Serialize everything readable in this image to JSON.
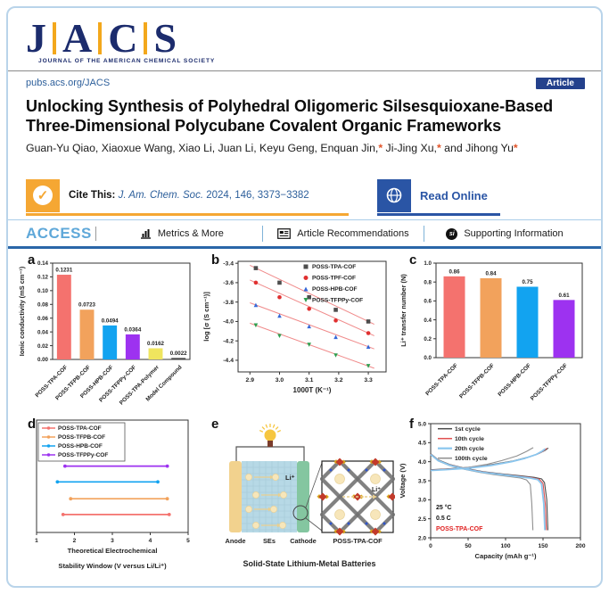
{
  "header": {
    "logo_letters": [
      "J",
      "A",
      "C",
      "S"
    ],
    "logo_subtitle": "JOURNAL OF THE AMERICAN CHEMICAL SOCIETY",
    "site_url": "pubs.acs.org/JACS",
    "article_badge": "Article",
    "title_line1": "Unlocking Synthesis of Polyhedral Oligomeric Silsesquioxane-Based",
    "title_line2": "Three-Dimensional Polycubane Covalent Organic Frameworks",
    "authors_segments": [
      {
        "text": "Guan-Yu Qiao, Xiaoxue Wang, Xiao Li, Juan Li, Keyu Geng, Enquan Jin,",
        "star": false
      },
      {
        "text": "*",
        "star": true
      },
      {
        "text": " Ji-Jing Xu,",
        "star": false
      },
      {
        "text": "*",
        "star": true
      },
      {
        "text": " and Jihong Yu",
        "star": false
      },
      {
        "text": "*",
        "star": true
      }
    ],
    "cite": {
      "label": "Cite This:",
      "journal": "J. Am. Chem. Soc.",
      "detail": " 2024, 146, 3373−3382"
    },
    "read_online": "Read Online",
    "access": {
      "label": "ACCESS",
      "items": [
        "Metrics & More",
        "Article Recommendations",
        "Supporting Information"
      ],
      "si_icon": "si"
    }
  },
  "figure": {
    "panels": {
      "a": {
        "letter": "a",
        "type": "bar",
        "ylabel": "Ionic conductivity (mS cm⁻¹)",
        "ymax": 0.14,
        "yticks": [
          "0.00",
          "0.02",
          "0.04",
          "0.06",
          "0.08",
          "0.10",
          "0.12",
          "0.14"
        ],
        "categories": [
          "POSS-TPA-COF",
          "POSS-TFPB-COF",
          "POSS-HPB-COF",
          "POSS-TFPPy-COF",
          "POSS-TPA-Polymer",
          "Model Compound"
        ],
        "values": [
          0.1231,
          0.0723,
          0.0494,
          0.0364,
          0.0162,
          0.0022
        ],
        "value_labels": [
          "0.1231",
          "0.0723",
          "0.0494",
          "0.0364",
          "0.0162",
          "0.0022"
        ],
        "colors": [
          "#f4726e",
          "#f2a25c",
          "#12a3f0",
          "#9d32f0",
          "#efe55e",
          "#4d4d4d"
        ]
      },
      "b": {
        "letter": "b",
        "type": "scatter",
        "xlabel": "1000T (K⁻¹)",
        "ylabel": "log [σ (S cm⁻¹)]",
        "xlim": [
          2.86,
          3.36
        ],
        "ylim": [
          -4.52,
          -3.38
        ],
        "xticks": [
          "2.9",
          "3.0",
          "3.1",
          "3.2",
          "3.3"
        ],
        "xtick_vals": [
          2.9,
          3.0,
          3.1,
          3.2,
          3.3
        ],
        "yticks": [
          "-3.4",
          "-3.6",
          "-3.8",
          "-4.0",
          "-4.2",
          "-4.4"
        ],
        "ytick_vals": [
          -3.4,
          -3.6,
          -3.8,
          -4.0,
          -4.2,
          -4.4
        ],
        "fit_color": "#f08a8a",
        "series": [
          {
            "name": "POSS-TPA-COF",
            "marker": "square",
            "color": "#4d4d4d",
            "points": [
              [
                2.92,
                -3.45
              ],
              [
                3.0,
                -3.6
              ],
              [
                3.1,
                -3.75
              ],
              [
                3.19,
                -3.88
              ],
              [
                3.3,
                -4.0
              ]
            ]
          },
          {
            "name": "POSS-TPF-COF",
            "marker": "circle",
            "color": "#e03030",
            "points": [
              [
                2.92,
                -3.6
              ],
              [
                3.0,
                -3.75
              ],
              [
                3.1,
                -3.87
              ],
              [
                3.19,
                -3.99
              ],
              [
                3.3,
                -4.12
              ]
            ]
          },
          {
            "name": "POSS-HPB-COF",
            "marker": "triangle-up",
            "color": "#3668d8",
            "points": [
              [
                2.92,
                -3.83
              ],
              [
                3.0,
                -3.94
              ],
              [
                3.1,
                -4.05
              ],
              [
                3.19,
                -4.16
              ],
              [
                3.3,
                -4.26
              ]
            ]
          },
          {
            "name": "POSS-TFPPy-COF",
            "marker": "triangle-down",
            "color": "#2e9e4f",
            "points": [
              [
                2.92,
                -4.04
              ],
              [
                3.0,
                -4.15
              ],
              [
                3.1,
                -4.24
              ],
              [
                3.19,
                -4.35
              ],
              [
                3.3,
                -4.46
              ]
            ]
          }
        ]
      },
      "c": {
        "letter": "c",
        "type": "bar",
        "ylabel": "Li⁺ transfer number (N)",
        "ymax": 1.0,
        "yticks": [
          "0.0",
          "0.2",
          "0.4",
          "0.6",
          "0.8",
          "1.0"
        ],
        "categories": [
          "POSS-TPA-COF",
          "POSS-TFPB-COF",
          "POSS-HPB-COF",
          "POSS-TFPPy-COF"
        ],
        "values": [
          0.86,
          0.84,
          0.75,
          0.61
        ],
        "value_labels": [
          "0.86",
          "0.84",
          "0.75",
          "0.61"
        ],
        "colors": [
          "#f4726e",
          "#f2a25c",
          "#12a3f0",
          "#9d32f0"
        ]
      },
      "d": {
        "letter": "d",
        "type": "windows",
        "xlabel_line1": "Theoretical Electrochemical",
        "xlabel_line2": "Stability Window (V versus Li/Li⁺)",
        "xlim": [
          1,
          5
        ],
        "xticks": [
          "1",
          "2",
          "3",
          "4",
          "5"
        ],
        "xtick_vals": [
          1,
          2,
          3,
          4,
          5
        ],
        "series": [
          {
            "name": "POSS-TPA-COF",
            "color": "#f4726e",
            "range": [
              1.7,
              4.5
            ],
            "level": 0.84
          },
          {
            "name": "POSS-TFPB-COF",
            "color": "#f2a25c",
            "range": [
              1.9,
              4.45
            ],
            "level": 0.7
          },
          {
            "name": "POSS-HPB-COF",
            "color": "#12a3f0",
            "range": [
              1.55,
              4.2
            ],
            "level": 0.55
          },
          {
            "name": "POSS-TFPPy-COF",
            "color": "#9d32f0",
            "range": [
              1.75,
              4.45
            ],
            "level": 0.41
          }
        ]
      },
      "e": {
        "letter": "e",
        "type": "battery",
        "labels": {
          "anode": "Anode",
          "ses": "SEs",
          "cathode": "Cathode",
          "cof": "POSS-TPA-COF",
          "li": "Li⁺",
          "li_zoom": "Li⁺"
        },
        "caption": "Solid-State Lithium-Metal Batteries",
        "colors": {
          "anode": "#f2d28e",
          "electrolyte": "#b7d9e6",
          "grid": "#a3c8d6",
          "cathode": "#84c6a0",
          "ion": "#f7e6ba",
          "ion_edge": "#e8d29a",
          "arrow": "#e9cf8f",
          "bulb": "#f6c63f",
          "bulb_base": "#7a3c2c",
          "wire": "#555555",
          "node_red": "#c23a2a",
          "node_yellow": "#d8a51c",
          "strut": "#707070",
          "n_atom": "#2f55cc"
        }
      },
      "f": {
        "letter": "f",
        "type": "cycles",
        "xlabel": "Capacity (mAh g⁻¹)",
        "ylabel": "Voltage (V)",
        "xlim": [
          0,
          200
        ],
        "ylim": [
          2.0,
          5.0
        ],
        "xticks": [
          "0",
          "50",
          "100",
          "150",
          "200"
        ],
        "xtick_vals": [
          0,
          50,
          100,
          150,
          200
        ],
        "yticks": [
          "2.0",
          "2.5",
          "3.0",
          "3.5",
          "4.0",
          "4.5",
          "5.0"
        ],
        "ytick_vals": [
          2.0,
          2.5,
          3.0,
          3.5,
          4.0,
          4.5,
          5.0
        ],
        "annotations": [
          {
            "text": "25 °C",
            "color": "#111111"
          },
          {
            "text": "0.5 C",
            "color": "#111111"
          },
          {
            "text": "POSS-TPA-COF",
            "color": "#e02020"
          }
        ],
        "series": [
          {
            "name": "1st cycle",
            "color": "#4d4d4d",
            "width": 1.1,
            "charge": [
              [
                0,
                3.79
              ],
              [
                20,
                3.81
              ],
              [
                50,
                3.85
              ],
              [
                80,
                3.92
              ],
              [
                110,
                4.02
              ],
              [
                130,
                4.12
              ],
              [
                145,
                4.22
              ],
              [
                153,
                4.3
              ],
              [
                157,
                4.36
              ]
            ],
            "discharge": [
              [
                0,
                4.21
              ],
              [
                10,
                4.05
              ],
              [
                25,
                3.93
              ],
              [
                45,
                3.83
              ],
              [
                70,
                3.74
              ],
              [
                95,
                3.68
              ],
              [
                120,
                3.63
              ],
              [
                138,
                3.59
              ],
              [
                148,
                3.55
              ],
              [
                152,
                3.45
              ],
              [
                155,
                3.0
              ],
              [
                156.5,
                2.2
              ]
            ]
          },
          {
            "name": "10th cycle",
            "color": "#e05050",
            "width": 1.1,
            "charge": [
              [
                0,
                3.78
              ],
              [
                20,
                3.8
              ],
              [
                50,
                3.84
              ],
              [
                80,
                3.91
              ],
              [
                110,
                4.01
              ],
              [
                128,
                4.1
              ],
              [
                143,
                4.2
              ],
              [
                151,
                4.29
              ],
              [
                155,
                4.35
              ]
            ],
            "discharge": [
              [
                0,
                4.2
              ],
              [
                10,
                4.04
              ],
              [
                25,
                3.92
              ],
              [
                45,
                3.82
              ],
              [
                70,
                3.73
              ],
              [
                95,
                3.67
              ],
              [
                118,
                3.62
              ],
              [
                135,
                3.58
              ],
              [
                145,
                3.54
              ],
              [
                150,
                3.43
              ],
              [
                153,
                2.9
              ],
              [
                154.5,
                2.2
              ]
            ]
          },
          {
            "name": "20th cycle",
            "color": "#8ac6ee",
            "width": 1.8,
            "charge": [
              [
                0,
                3.77
              ],
              [
                20,
                3.79
              ],
              [
                50,
                3.83
              ],
              [
                80,
                3.9
              ],
              [
                108,
                4.0
              ],
              [
                126,
                4.09
              ],
              [
                141,
                4.19
              ],
              [
                149,
                4.28
              ],
              [
                153,
                4.34
              ]
            ],
            "discharge": [
              [
                0,
                4.19
              ],
              [
                10,
                4.03
              ],
              [
                25,
                3.91
              ],
              [
                45,
                3.81
              ],
              [
                70,
                3.72
              ],
              [
                95,
                3.66
              ],
              [
                116,
                3.61
              ],
              [
                133,
                3.57
              ],
              [
                143,
                3.53
              ],
              [
                148,
                3.42
              ],
              [
                151,
                2.9
              ],
              [
                152.5,
                2.2
              ]
            ]
          },
          {
            "name": "100th cycle",
            "color": "#8f8f8f",
            "width": 1.1,
            "charge": [
              [
                0,
                3.77
              ],
              [
                20,
                3.8
              ],
              [
                50,
                3.85
              ],
              [
                75,
                3.93
              ],
              [
                95,
                4.03
              ],
              [
                115,
                4.15
              ],
              [
                128,
                4.27
              ],
              [
                135,
                4.35
              ],
              [
                137,
                4.37
              ]
            ],
            "discharge": [
              [
                0,
                4.19
              ],
              [
                10,
                4.02
              ],
              [
                25,
                3.9
              ],
              [
                45,
                3.8
              ],
              [
                65,
                3.72
              ],
              [
                85,
                3.66
              ],
              [
                105,
                3.61
              ],
              [
                120,
                3.57
              ],
              [
                128,
                3.52
              ],
              [
                133,
                3.4
              ],
              [
                135,
                2.9
              ],
              [
                136.5,
                2.2
              ]
            ]
          }
        ]
      }
    }
  }
}
